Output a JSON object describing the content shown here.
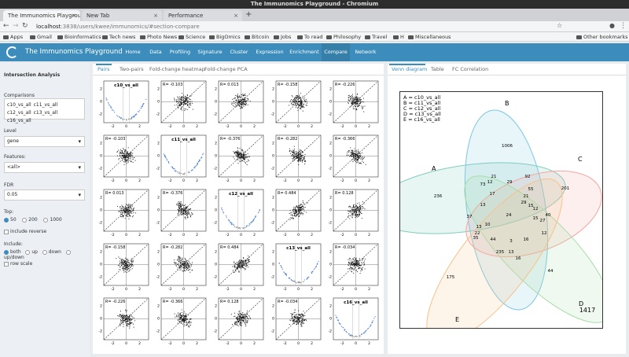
{
  "window": {
    "title": "The Immunomics Playground - Chromium"
  },
  "browser": {
    "tabs": [
      {
        "label": "The Immunomics Playgrou",
        "active": true
      },
      {
        "label": "New Tab",
        "active": false
      },
      {
        "label": "Performance",
        "active": false
      }
    ],
    "url_host": "localhost",
    "url_path": ":3838/users/kwee/immunomics/#section-compare",
    "bookmarks": [
      "Apps",
      "Gmail",
      "Bioinformatics",
      "Tech news",
      "Photo News",
      "Science",
      "BigOmics",
      "Bitcoin",
      "Jobs",
      "To read",
      "Philosophy",
      "Travel",
      "H",
      "Miscellaneous"
    ],
    "other_bookmarks": "Other bookmarks"
  },
  "app": {
    "brand": "The Immunomics Playground",
    "menu": [
      "Home",
      "Data",
      "Profiling",
      "Signature",
      "Cluster",
      "Expression",
      "Enrichment",
      "Compare",
      "Network"
    ],
    "active_menu": "Compare"
  },
  "sidebar": {
    "title": "Intersection Analysis",
    "comparisons_label": "Comparisons",
    "comparisons": [
      "c10_vs_all",
      "c11_vs_all",
      "c12_vs_all",
      "c13_vs_all",
      "c16_vs_all"
    ],
    "level_label": "Level",
    "level_value": "gene",
    "features_label": "Features:",
    "features_value": "<all>",
    "fdr_label": "FDR",
    "fdr_value": "0.05",
    "top_label": "Top:",
    "top_options": [
      "50",
      "200",
      "1000"
    ],
    "top_selected": "50",
    "include_reverse": "include reverse",
    "include_label": "Include:",
    "include_options": [
      "both",
      "up",
      "down",
      "up/down"
    ],
    "include_selected": "both",
    "row_scale": "row scale"
  },
  "left_panel": {
    "tabs": [
      "Pairs",
      "Two-pairs",
      "Fold-change heatmap",
      "Fold-change PCA"
    ],
    "active_tab": "Pairs",
    "diag_labels": [
      "c10_vs_all",
      "c11_vs_all",
      "c12_vs_all",
      "c13_vs_all",
      "c16_vs_all"
    ],
    "correlations": [
      [
        null,
        "R= -0.103",
        "R= 0.013",
        "R= -0.158",
        "R= -0.226"
      ],
      [
        "R= -0.103",
        null,
        "R= -0.376",
        "R= -0.282",
        "R= -0.366"
      ],
      [
        "R= 0.013",
        "R= -0.376",
        null,
        "R= 0.484",
        "R= 0.128"
      ],
      [
        "R= -0.158",
        "R= -0.282",
        "R= 0.484",
        null,
        "R= -0.034"
      ],
      [
        "R= -0.226",
        "R= -0.366",
        "R= 0.128",
        "R= -0.034",
        null
      ]
    ],
    "axis_ticks_x": [
      "-2",
      "0",
      "2"
    ],
    "axis_ticks_y": [
      "2",
      "0",
      "-2"
    ]
  },
  "right_panel": {
    "tabs": [
      "Venn diagram",
      "Table",
      "FC Correlation"
    ],
    "active_tab": "Venn diagram",
    "legend": [
      "A = c10_vs_all",
      "B = c11_vs_all",
      "C = c12_vs_all",
      "D = c13_vs_all",
      "E = c16_vs_all"
    ],
    "set_labels": [
      "A",
      "B",
      "C",
      "D",
      "E"
    ],
    "regions": [
      "1006",
      "201",
      "44",
      "175",
      "236",
      "92",
      "21",
      "73",
      "12",
      "29",
      "55",
      "21",
      "12",
      "40",
      "27",
      "15",
      "24",
      "13",
      "15",
      "17",
      "37",
      "13",
      "10",
      "22",
      "35",
      "44",
      "3",
      "16",
      "235",
      "13",
      "16",
      "12",
      "29"
    ],
    "outside": "1417",
    "colors": {
      "A": "#7fcdbb",
      "B": "#7fc6e0",
      "C": "#f4a6a0",
      "D": "#a8dca8",
      "E": "#f6c28b"
    }
  }
}
